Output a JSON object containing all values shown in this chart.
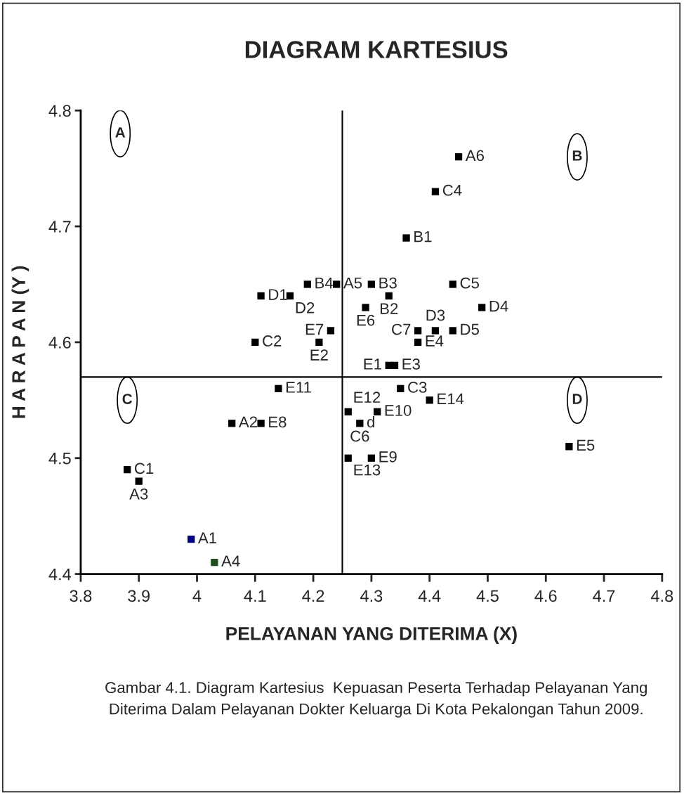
{
  "chart_data": {
    "type": "scatter",
    "title": "DIAGRAM KARTESIUS",
    "xlabel": "PELAYANAN YANG DITERIMA (X)",
    "ylabel": "H A R A P A N (Y )",
    "x": [
      4.45,
      4.41,
      4.36,
      4.19,
      4.24,
      4.11,
      4.16,
      4.3,
      4.33,
      4.29,
      4.44,
      4.49,
      4.23,
      4.1,
      4.21,
      4.38,
      4.41,
      4.44,
      4.38,
      4.33,
      4.34,
      4.35,
      4.4,
      4.14,
      4.31,
      4.26,
      4.28,
      4.06,
      4.11,
      4.3,
      4.26,
      4.64,
      3.88,
      3.9,
      3.99,
      4.03
    ],
    "values": [
      4.76,
      4.73,
      4.69,
      4.65,
      4.65,
      4.64,
      4.64,
      4.65,
      4.64,
      4.63,
      4.65,
      4.63,
      4.61,
      4.6,
      4.6,
      4.61,
      4.61,
      4.61,
      4.6,
      4.58,
      4.58,
      4.56,
      4.55,
      4.56,
      4.54,
      4.54,
      4.53,
      4.53,
      4.53,
      4.5,
      4.5,
      4.51,
      4.49,
      4.48,
      4.43,
      4.41
    ],
    "colors": [
      "#000000",
      "#000000",
      "#000000",
      "#000000",
      "#000000",
      "#000000",
      "#000000",
      "#000000",
      "#000000",
      "#000000",
      "#000000",
      "#000000",
      "#000000",
      "#000000",
      "#000000",
      "#000000",
      "#000000",
      "#000000",
      "#000000",
      "#000000",
      "#000000",
      "#000000",
      "#000000",
      "#000000",
      "#000000",
      "#000000",
      "#000000",
      "#000000",
      "#000000",
      "#000000",
      "#000000",
      "#000000",
      "#000000",
      "#000000",
      "#000080",
      "#1f4f1f"
    ],
    "marker": "square",
    "xlim": [
      3.8,
      4.8
    ],
    "xticks": [
      3.8,
      3.9,
      4,
      4.1,
      4.2,
      4.3,
      4.4,
      4.5,
      4.6,
      4.7,
      4.8
    ],
    "ylim": [
      4.4,
      4.8
    ],
    "yticks": [
      4.4,
      4.5,
      4.6,
      4.7,
      4.8
    ],
    "grid": false,
    "ref_lines": [
      {
        "axis": "x",
        "value": 4.25,
        "color": "#000000"
      },
      {
        "axis": "y",
        "value": 4.57,
        "color": "#000000"
      }
    ],
    "annotations": [
      {
        "text": "A6",
        "x": 4.45,
        "y": 4.76
      },
      {
        "text": "C4",
        "x": 4.41,
        "y": 4.73
      },
      {
        "text": "B1",
        "x": 4.36,
        "y": 4.69
      },
      {
        "text": "B4",
        "x": 4.19,
        "y": 4.65
      },
      {
        "text": "A5",
        "x": 4.24,
        "y": 4.65
      },
      {
        "text": "D1",
        "x": 4.11,
        "y": 4.64
      },
      {
        "text": "D2",
        "x": 4.16,
        "y": 4.64
      },
      {
        "text": "B3",
        "x": 4.3,
        "y": 4.65
      },
      {
        "text": "B2",
        "x": 4.33,
        "y": 4.64
      },
      {
        "text": "E6",
        "x": 4.29,
        "y": 4.63
      },
      {
        "text": "C5",
        "x": 4.44,
        "y": 4.65
      },
      {
        "text": "D4",
        "x": 4.49,
        "y": 4.63
      },
      {
        "text": "E7",
        "x": 4.23,
        "y": 4.61
      },
      {
        "text": "C2",
        "x": 4.1,
        "y": 4.6
      },
      {
        "text": "E2",
        "x": 4.21,
        "y": 4.6
      },
      {
        "text": "C7",
        "x": 4.38,
        "y": 4.61
      },
      {
        "text": "D3",
        "x": 4.41,
        "y": 4.61
      },
      {
        "text": "D5",
        "x": 4.44,
        "y": 4.61
      },
      {
        "text": "E4",
        "x": 4.38,
        "y": 4.6
      },
      {
        "text": "E1",
        "x": 4.33,
        "y": 4.58
      },
      {
        "text": "E3",
        "x": 4.34,
        "y": 4.58
      },
      {
        "text": "C3",
        "x": 4.35,
        "y": 4.56
      },
      {
        "text": "E14",
        "x": 4.4,
        "y": 4.55
      },
      {
        "text": "E11",
        "x": 4.14,
        "y": 4.56
      },
      {
        "text": "E10",
        "x": 4.31,
        "y": 4.54
      },
      {
        "text": "E12",
        "x": 4.26,
        "y": 4.54
      },
      {
        "text": "C6",
        "x": 4.28,
        "y": 4.53
      },
      {
        "text": "d",
        "x": 4.28,
        "y": 4.53
      },
      {
        "text": "A2",
        "x": 4.06,
        "y": 4.53
      },
      {
        "text": "E8",
        "x": 4.11,
        "y": 4.53
      },
      {
        "text": "E9",
        "x": 4.3,
        "y": 4.5
      },
      {
        "text": "E13",
        "x": 4.26,
        "y": 4.5
      },
      {
        "text": "E5",
        "x": 4.64,
        "y": 4.51
      },
      {
        "text": "C1",
        "x": 3.88,
        "y": 4.49
      },
      {
        "text": "A3",
        "x": 3.9,
        "y": 4.48
      },
      {
        "text": "A1",
        "x": 3.99,
        "y": 4.43
      },
      {
        "text": "A4",
        "x": 4.03,
        "y": 4.41
      },
      "A",
      "B",
      "C",
      "D",
      "Gambar 4.1. Diagram Kartesius  Kepuasan Peserta Terhadap Pelayanan Yang\nDiterima Dalam Pelayanan Dokter Keluarga Di Kota Pekalongan Tahun 2009."
    ]
  }
}
